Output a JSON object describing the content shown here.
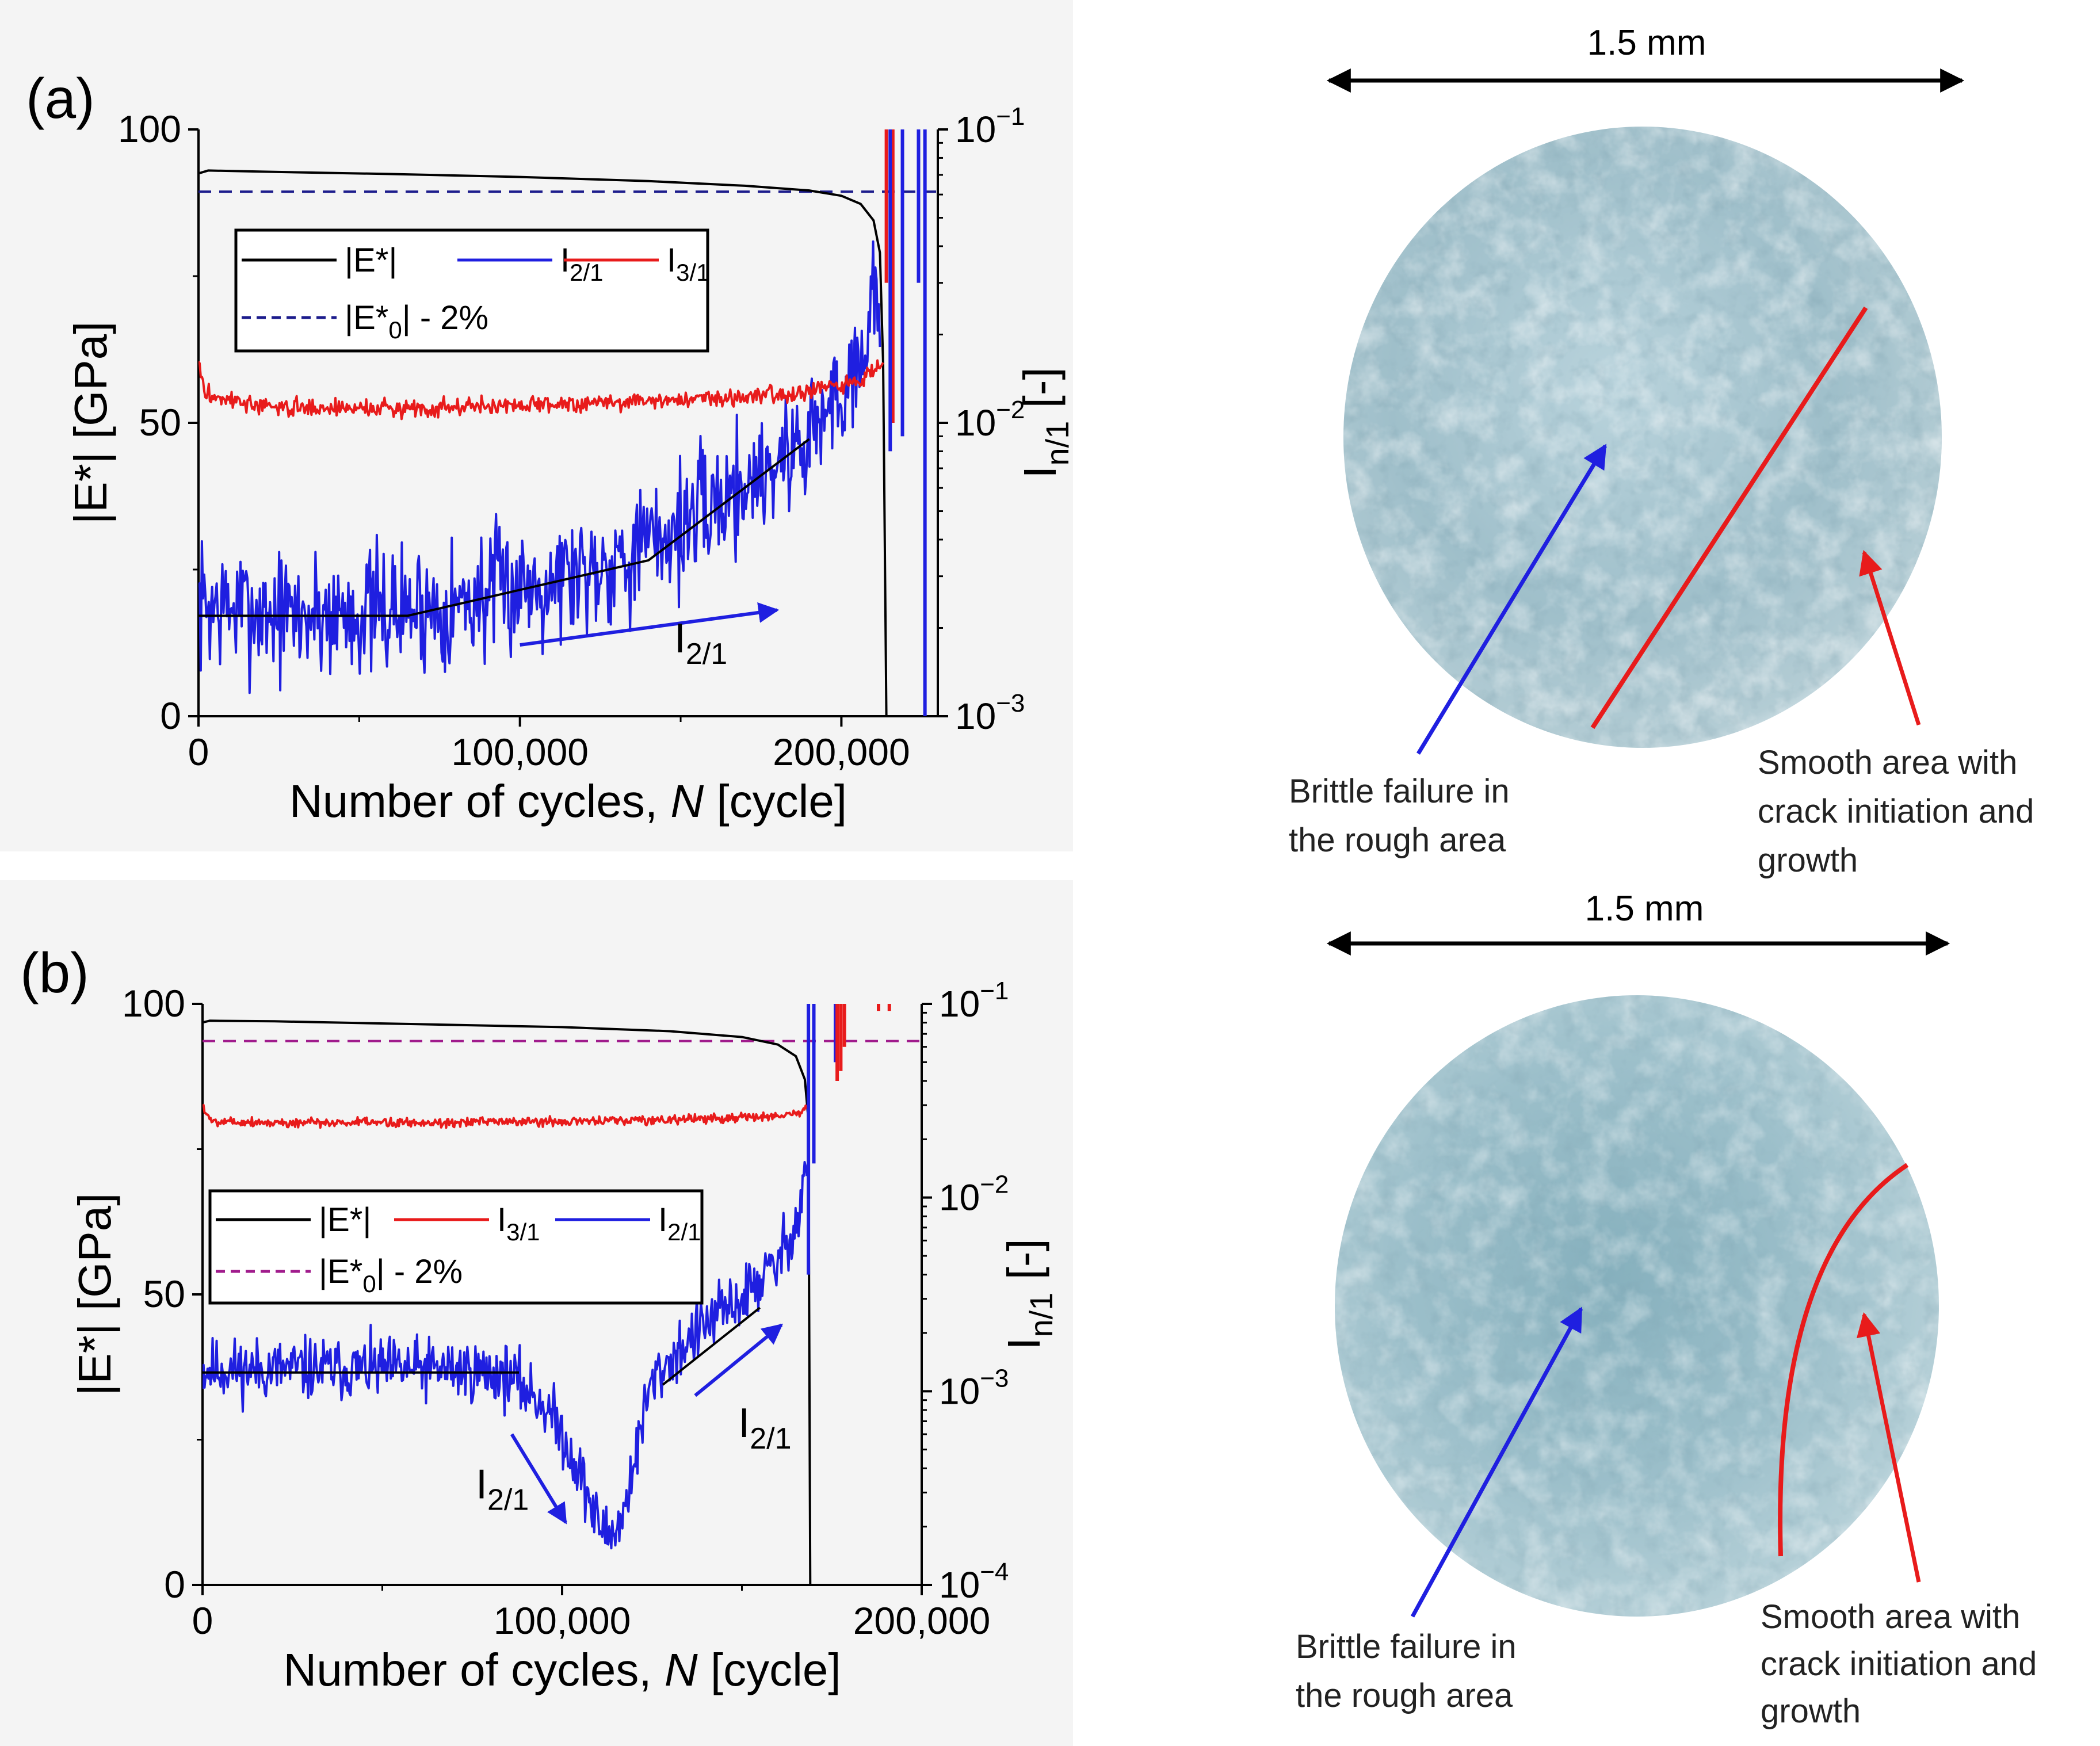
{
  "figure": {
    "panels": [
      {
        "label": "(a)",
        "chart_data": {
          "type": "line",
          "xlabel_prefix": "Number of cycles, ",
          "xlabel_var": "N",
          "xlabel_suffix": " [cycle]",
          "ylabel_left": "|E*| [GPa]",
          "ylabel_right_main": "I",
          "ylabel_right_sub": "n/1",
          "ylabel_right_tail": " [-]",
          "xlim": [
            0,
            230000
          ],
          "ylim_left": [
            0,
            100
          ],
          "ylim_right_log": [
            -3,
            -1
          ],
          "x_ticks": [
            0,
            100000,
            200000
          ],
          "x_tick_labels": [
            "0",
            "100,000",
            "200,000"
          ],
          "y_ticks_left": [
            0,
            50,
            100
          ],
          "y_tick_labels_left": [
            "0",
            "50",
            "100"
          ],
          "y_ticks_right_exp": [
            -1,
            -2,
            -3
          ],
          "y_tick_base": "10",
          "y_tick_exps": [
            "−1",
            "−2",
            "−3"
          ],
          "legend_rows": [
            [
              {
                "key": "E",
                "text": "|E*|",
                "color": "#000000",
                "dash": false
              },
              {
                "key": "I21",
                "text": "I",
                "sub": "2/1",
                "color": "#1f1fe0",
                "dash": false
              },
              {
                "key": "I31",
                "text": "I",
                "sub": "3/1",
                "color": "#e81b1b",
                "dash": false
              }
            ],
            [
              {
                "key": "Eref",
                "text": "|E*",
                "sub": "0",
                "text2": "| - 2%",
                "color": "#1c1c8c",
                "dash": true
              }
            ]
          ],
          "reference_line": {
            "y": 89.4,
            "color": "#1c1c8c"
          },
          "series": [
            {
              "name": "|E*|",
              "axis": "left",
              "color": "#000000",
              "x": [
                0,
                3000,
                20000,
                60000,
                100000,
                140000,
                170000,
                190000,
                200000,
                206000,
                210000,
                212000,
                213000,
                214000
              ],
              "y": [
                92.5,
                93.0,
                92.8,
                92.4,
                91.9,
                91.2,
                90.4,
                89.6,
                88.7,
                87.3,
                84.5,
                79.0,
                60.0,
                0.0
              ]
            },
            {
              "name": "I2/1",
              "axis": "right",
              "color": "#1f1fe0",
              "x": [
                0,
                30000,
                60000,
                80000,
                100000,
                120000,
                140000,
                155000,
                170000,
                185000,
                195000,
                202000,
                208000,
                212000
              ],
              "y": [
                0.0024,
                0.0022,
                0.0023,
                0.0024,
                0.0028,
                0.0032,
                0.0038,
                0.0048,
                0.0062,
                0.008,
                0.0105,
                0.014,
                0.02,
                0.03
              ],
              "noise": 0.22,
              "seed": 7
            },
            {
              "name": "I3/1",
              "axis": "right",
              "color": "#e81b1b",
              "x": [
                0,
                2000,
                20000,
                60000,
                100000,
                140000,
                170000,
                190000,
                200000,
                206000,
                210000,
                213000
              ],
              "y": [
                0.016,
                0.0125,
                0.0113,
                0.0112,
                0.0115,
                0.0119,
                0.0123,
                0.0128,
                0.0133,
                0.014,
                0.015,
                0.0165
              ],
              "noise": 0.03,
              "seed": 3
            },
            {
              "name": "I2/1 trend",
              "axis": "right",
              "color": "#000000",
              "width": 4,
              "x": [
                0,
                65000,
                140000,
                190000
              ],
              "y": [
                0.0022,
                0.0022,
                0.0034,
                0.0088
              ]
            }
          ],
          "spikes": [
            {
              "x": 214000,
              "y1": 0.03,
              "y2": 0.1,
              "color": "#e81b1b"
            },
            {
              "x": 216000,
              "y1": 0.01,
              "y2": 0.1,
              "color": "#e81b1b"
            },
            {
              "x": 215200,
              "y1": 0.008,
              "y2": 0.1,
              "color": "#1f1fe0"
            },
            {
              "x": 219000,
              "y1": 0.009,
              "y2": 0.1,
              "color": "#1f1fe0"
            },
            {
              "x": 224000,
              "y1": 0.03,
              "y2": 0.1,
              "color": "#1f1fe0"
            },
            {
              "x": 226000,
              "y1": 0.001,
              "y2": 0.1,
              "color": "#1f1fe0"
            }
          ],
          "arrows": [
            {
              "x1": 100000,
              "y1": 0.00175,
              "x2": 180000,
              "y2": 0.0023,
              "color": "#1f1fe0"
            }
          ],
          "annotations": [
            {
              "text": "I",
              "sub": "2/1",
              "x": 148000,
              "y": 0.00165
            }
          ]
        },
        "photo": {
          "scale_text": "1.5 mm",
          "blue_label": [
            "Brittle failure in",
            "the rough area"
          ],
          "red_label": [
            "Smooth area with",
            "crack initiation and",
            "growth"
          ]
        }
      },
      {
        "label": "(b)",
        "chart_data": {
          "type": "line",
          "xlabel_prefix": "Number of cycles, ",
          "xlabel_var": "N",
          "xlabel_suffix": " [cycle]",
          "ylabel_left": "|E*| [GPa]",
          "ylabel_right_main": "I",
          "ylabel_right_sub": "n/1",
          "ylabel_right_tail": " [-]",
          "xlim": [
            0,
            200000
          ],
          "ylim_left": [
            0,
            100
          ],
          "ylim_right_log": [
            -4,
            -1
          ],
          "x_ticks": [
            0,
            100000,
            200000
          ],
          "x_tick_labels": [
            "0",
            "100,000",
            "200,000"
          ],
          "y_ticks_left": [
            0,
            50,
            100
          ],
          "y_tick_labels_left": [
            "0",
            "50",
            "100"
          ],
          "y_ticks_right_exp": [
            -1,
            -2,
            -3,
            -4
          ],
          "y_tick_base": "10",
          "y_tick_exps": [
            "−1",
            "−2",
            "−3",
            "−4"
          ],
          "legend_rows": [
            [
              {
                "key": "E",
                "text": "|E*|",
                "color": "#000000",
                "dash": false
              },
              {
                "key": "I31",
                "text": "I",
                "sub": "3/1",
                "color": "#e81b1b",
                "dash": false
              },
              {
                "key": "I21",
                "text": "I",
                "sub": "2/1",
                "color": "#1f1fe0",
                "dash": false
              }
            ],
            [
              {
                "key": "Eref",
                "text": "|E*",
                "sub": "0",
                "text2": "| - 2%",
                "color": "#a01b8c",
                "dash": true
              }
            ]
          ],
          "reference_line": {
            "y": 93.6,
            "color": "#a01b8c"
          },
          "series": [
            {
              "name": "|E*|",
              "axis": "left",
              "color": "#000000",
              "x": [
                0,
                2000,
                20000,
                60000,
                100000,
                130000,
                150000,
                160000,
                165000,
                167500,
                168500,
                169000
              ],
              "y": [
                96.8,
                97.1,
                97.0,
                96.5,
                96.0,
                95.3,
                94.3,
                93.0,
                91.0,
                87.0,
                80.0,
                0.0
              ]
            },
            {
              "name": "I2/1",
              "axis": "right",
              "color": "#1f1fe0",
              "x": [
                0,
                40000,
                70000,
                85000,
                95000,
                103000,
                109000,
                113000,
                117000,
                121000,
                125000,
                135000,
                150000,
                160000,
                166000,
                168000
              ],
              "y": [
                0.0013,
                0.0013,
                0.0013,
                0.0012,
                0.00085,
                0.00045,
                0.00022,
                0.00018,
                0.00022,
                0.0005,
                0.0011,
                0.0018,
                0.003,
                0.0045,
                0.008,
                0.016
              ],
              "noise": 0.16,
              "seed": 11
            },
            {
              "name": "I3/1",
              "axis": "right",
              "color": "#e81b1b",
              "x": [
                0,
                2000,
                20000,
                60000,
                100000,
                130000,
                150000,
                160000,
                166000,
                168000
              ],
              "y": [
                0.03,
                0.025,
                0.0243,
                0.0244,
                0.0247,
                0.0252,
                0.0258,
                0.0264,
                0.0275,
                0.029
              ],
              "noise": 0.025,
              "seed": 5
            },
            {
              "name": "I2/1 trend 1",
              "axis": "right",
              "color": "#000000",
              "width": 4,
              "x": [
                0,
                88000
              ],
              "y": [
                0.00125,
                0.00125
              ]
            },
            {
              "name": "I2/1 trend 2",
              "axis": "right",
              "color": "#000000",
              "width": 4,
              "x": [
                128000,
                155000
              ],
              "y": [
                0.00108,
                0.0027
              ]
            }
          ],
          "spikes": [
            {
              "x": 168500,
              "y1": 0.004,
              "y2": 0.1,
              "color": "#1f1fe0"
            },
            {
              "x": 170000,
              "y1": 0.015,
              "y2": 0.1,
              "color": "#1f1fe0"
            },
            {
              "x": 176000,
              "y1": 0.05,
              "y2": 0.1,
              "color": "#1f1fe0"
            },
            {
              "x": 176500,
              "y1": 0.04,
              "y2": 0.1,
              "color": "#e81b1b"
            },
            {
              "x": 177500,
              "y1": 0.045,
              "y2": 0.1,
              "color": "#e81b1b"
            },
            {
              "x": 178500,
              "y1": 0.06,
              "y2": 0.1,
              "color": "#e81b1b"
            },
            {
              "x": 188000,
              "y1": 0.092,
              "y2": 0.1,
              "color": "#e81b1b"
            },
            {
              "x": 191000,
              "y1": 0.092,
              "y2": 0.1,
              "color": "#e81b1b"
            }
          ],
          "arrows": [
            {
              "x1": 137000,
              "y1": 0.00095,
              "x2": 161000,
              "y2": 0.0022,
              "color": "#1f1fe0"
            },
            {
              "x1": 86000,
              "y1": 0.0006,
              "x2": 101000,
              "y2": 0.00021,
              "color": "#1f1fe0"
            }
          ],
          "annotations": [
            {
              "text": "I",
              "sub": "2/1",
              "x": 149000,
              "y": 0.00058
            },
            {
              "text": "I",
              "sub": "2/1",
              "x": 76000,
              "y": 0.00028
            }
          ]
        },
        "photo": {
          "scale_text": "1.5 mm",
          "blue_label": [
            "Brittle failure in",
            "the rough area"
          ],
          "red_label": [
            "Smooth area with",
            "crack initiation and",
            "growth"
          ]
        }
      }
    ]
  }
}
